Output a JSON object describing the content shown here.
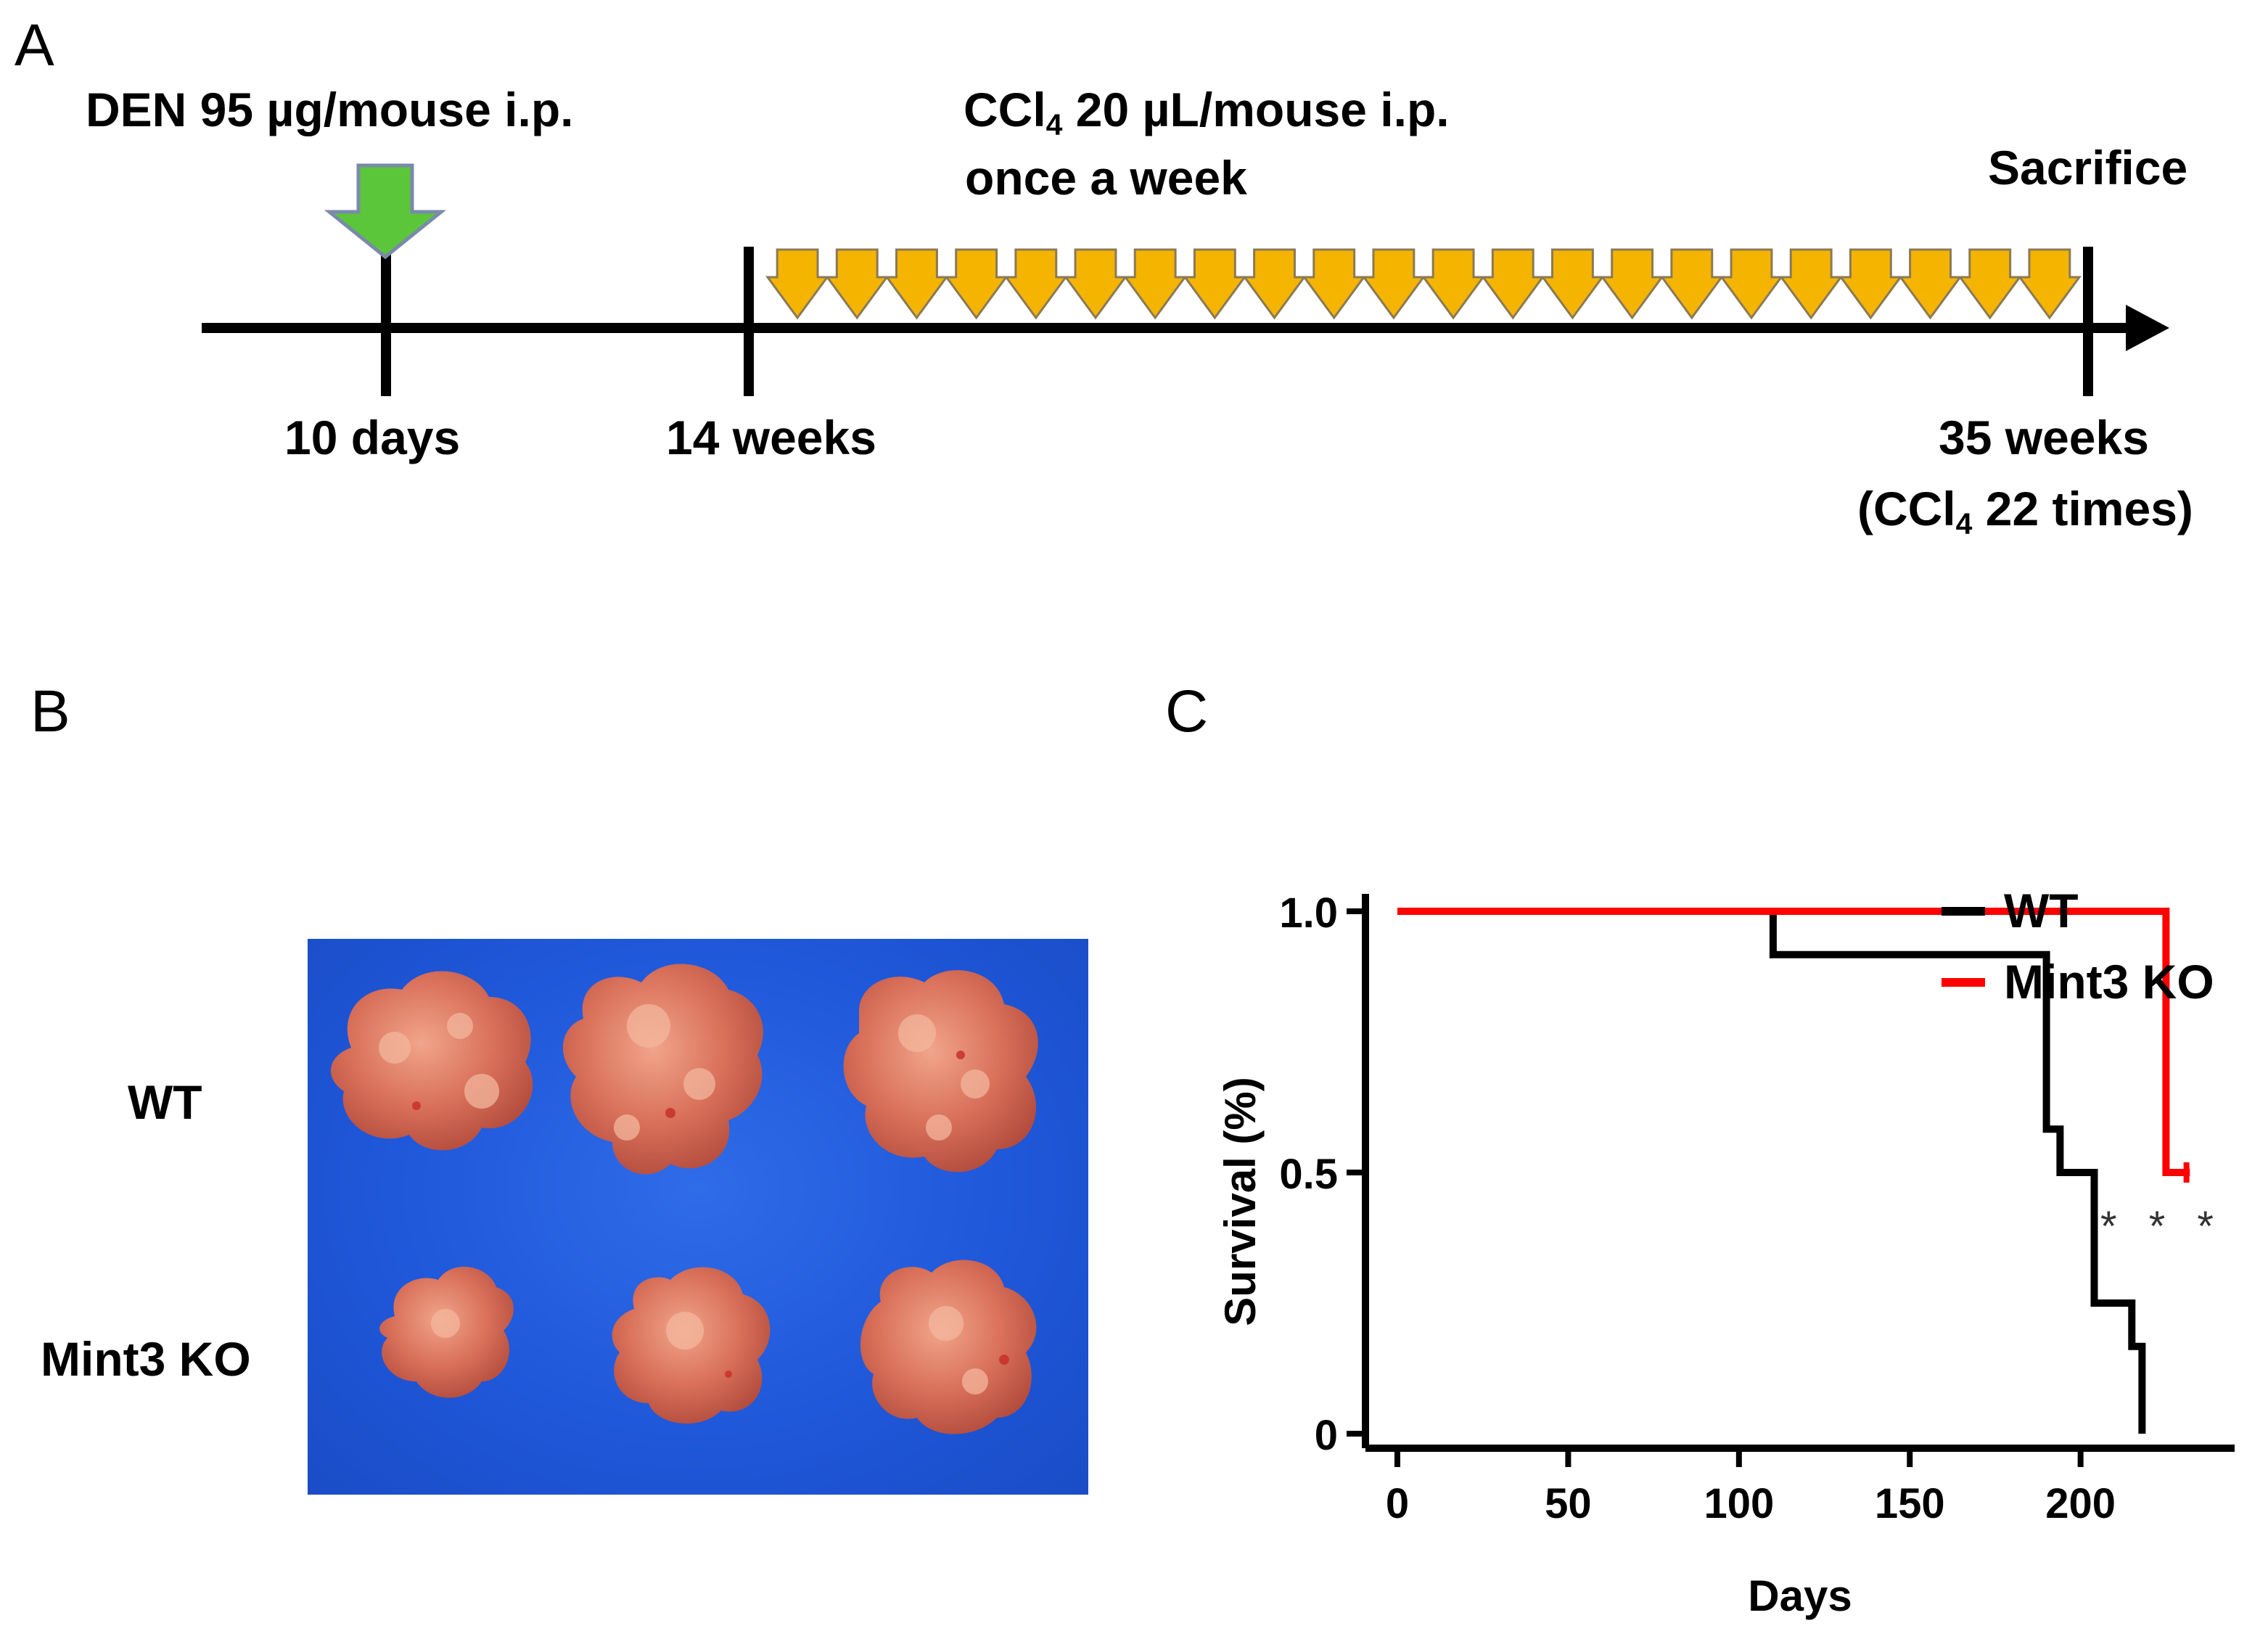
{
  "figure": {
    "panels": {
      "a": {
        "letter": "A"
      },
      "b": {
        "letter": "B"
      },
      "c": {
        "letter": "C"
      }
    },
    "timeline": {
      "den": {
        "text": "DEN 95 µg/mouse  i.p.",
        "arrow_color": "#5cc63a"
      },
      "ccl4": {
        "line1_pre": "CCl",
        "line1_sub": "4",
        "line1_post": " 20 µL/mouse i.p.",
        "line2": "once a week",
        "arrow_color": "#f5b400",
        "arrow_count": 22
      },
      "sacrifice": "Sacrifice",
      "ticks": {
        "t1": "10 days",
        "t2": "14 weeks",
        "t3": "35 weeks",
        "t3_sub_pre": "(CCl",
        "t3_sub_sub": "4",
        "t3_sub_post": " 22 times)"
      }
    },
    "photo": {
      "row_labels": {
        "top": "WT",
        "bottom": "Mint3 KO"
      },
      "background_color": "#1f58da",
      "tissue_color": "#d9705a"
    }
  },
  "chart_data": {
    "type": "line",
    "subtype": "kaplan-meier",
    "title": "",
    "xlabel": "Days",
    "ylabel": "Survival (%)",
    "xlim": [
      0,
      240
    ],
    "ylim": [
      0,
      1.0
    ],
    "x_ticks": [
      0,
      50,
      100,
      150,
      200
    ],
    "y_ticks": [
      0,
      0.5,
      1.0
    ],
    "y_tick_labels": [
      "0",
      "0.5",
      "1.0"
    ],
    "legend": "top-right",
    "annotation": "* * *",
    "series": [
      {
        "name": "WT",
        "color": "#000000",
        "steps": [
          [
            0,
            1.0
          ],
          [
            110,
            1.0
          ],
          [
            110,
            0.917
          ],
          [
            190,
            0.917
          ],
          [
            190,
            0.583
          ],
          [
            194,
            0.583
          ],
          [
            194,
            0.5
          ],
          [
            204,
            0.5
          ],
          [
            204,
            0.25
          ],
          [
            215,
            0.25
          ],
          [
            215,
            0.167
          ],
          [
            218,
            0.167
          ],
          [
            218,
            0.0
          ]
        ]
      },
      {
        "name": "Mint3 KO",
        "color": "#ff0000",
        "steps": [
          [
            0,
            1.0
          ],
          [
            225,
            1.0
          ],
          [
            225,
            0.5
          ],
          [
            232,
            0.5
          ]
        ],
        "censor": [
          [
            231,
            0.5
          ]
        ]
      }
    ]
  }
}
